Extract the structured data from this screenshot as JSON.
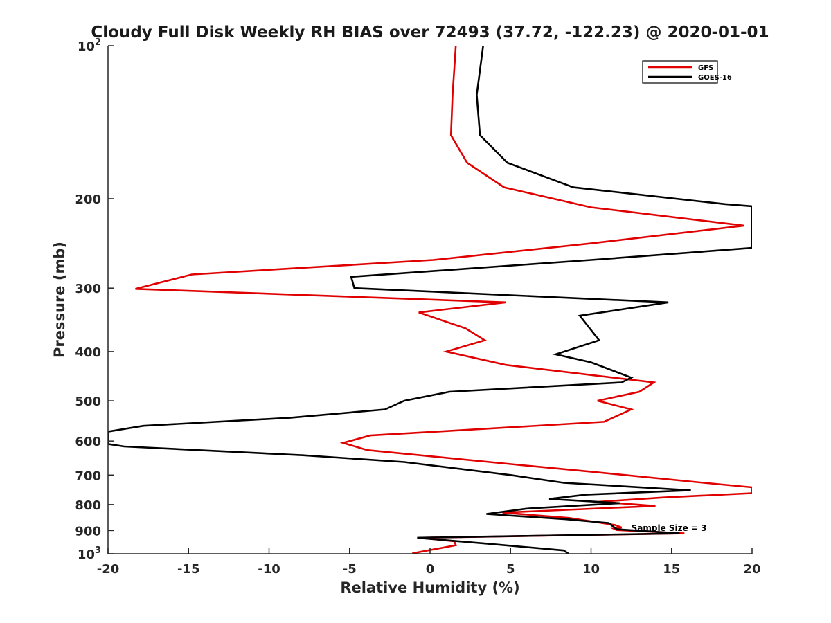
{
  "chart_data": {
    "type": "line",
    "title": "Cloudy Full Disk Weekly RH BIAS over 72493 (37.72, -122.23) @ 2020-01-01",
    "xlabel": "Relative Humidity (%)",
    "ylabel": "Pressure (mb)",
    "xlim": [
      -20,
      20
    ],
    "ylim": [
      100,
      1000
    ],
    "yscale": "log",
    "y_reversed": true,
    "grid": false,
    "legend_position": "top-right",
    "x_ticks": [
      -20,
      -15,
      -10,
      -5,
      0,
      5,
      10,
      15,
      20
    ],
    "x_tick_labels": [
      "-20",
      "-15",
      "-10",
      "-5",
      "0",
      "5",
      "10",
      "15",
      "20"
    ],
    "y_ticks": [
      {
        "value": 100,
        "base": "10",
        "exp": "2"
      },
      {
        "value": 200,
        "label": "200"
      },
      {
        "value": 300,
        "label": "300"
      },
      {
        "value": 400,
        "label": "400"
      },
      {
        "value": 500,
        "label": "500"
      },
      {
        "value": 600,
        "label": "600"
      },
      {
        "value": 700,
        "label": "700"
      },
      {
        "value": 800,
        "label": "800"
      },
      {
        "value": 900,
        "label": "900"
      },
      {
        "value": 1000,
        "base": "10",
        "exp": "3"
      }
    ],
    "series": [
      {
        "name": "GFS",
        "color": "#e00000",
        "points": [
          [
            1.6,
            100
          ],
          [
            1.4,
            125
          ],
          [
            1.3,
            150
          ],
          [
            2.3,
            170
          ],
          [
            4.6,
            190
          ],
          [
            10.0,
            208
          ],
          [
            19.5,
            226
          ],
          [
            10.0,
            245
          ],
          [
            0.2,
            264
          ],
          [
            -14.8,
            282
          ],
          [
            -18.3,
            301
          ],
          [
            4.7,
            320
          ],
          [
            -0.7,
            335
          ],
          [
            2.2,
            360
          ],
          [
            3.4,
            380
          ],
          [
            1.0,
            400
          ],
          [
            4.7,
            425
          ],
          [
            13.9,
            460
          ],
          [
            13.0,
            480
          ],
          [
            10.4,
            500
          ],
          [
            12.5,
            520
          ],
          [
            10.8,
            550
          ],
          [
            0.4,
            575
          ],
          [
            -3.7,
            585
          ],
          [
            -5.4,
            605
          ],
          [
            -3.9,
            625
          ],
          [
            4.8,
            665
          ],
          [
            10.1,
            690
          ],
          [
            17.0,
            725
          ],
          [
            20.0,
            740
          ],
          [
            20.0,
            760
          ],
          [
            14.5,
            775
          ],
          [
            10.5,
            790
          ],
          [
            14.0,
            805
          ],
          [
            4.5,
            830
          ],
          [
            8.6,
            850
          ],
          [
            11.5,
            878
          ],
          [
            11.9,
            888
          ],
          [
            11.4,
            892
          ],
          [
            11.6,
            898
          ],
          [
            15.8,
            912
          ],
          [
            -0.6,
            930
          ],
          [
            1.5,
            945
          ],
          [
            1.6,
            962
          ],
          [
            -1.1,
            998
          ]
        ]
      },
      {
        "name": "GOES-16",
        "color": "#000000",
        "points": [
          [
            3.3,
            100
          ],
          [
            2.9,
            125
          ],
          [
            3.1,
            150
          ],
          [
            4.8,
            170
          ],
          [
            8.9,
            190
          ],
          [
            18.3,
            205
          ],
          [
            20.0,
            207
          ],
          [
            20.0,
            250
          ],
          [
            10.0,
            264
          ],
          [
            -4.9,
            285
          ],
          [
            -4.7,
            300
          ],
          [
            14.8,
            320
          ],
          [
            9.3,
            340
          ],
          [
            10.5,
            380
          ],
          [
            7.8,
            405
          ],
          [
            10.0,
            420
          ],
          [
            12.5,
            450
          ],
          [
            11.9,
            460
          ],
          [
            1.2,
            480
          ],
          [
            -1.6,
            500
          ],
          [
            -2.8,
            520
          ],
          [
            -8.7,
            540
          ],
          [
            -17.8,
            560
          ],
          [
            -20.0,
            575
          ],
          [
            -20.0,
            608
          ],
          [
            -19.0,
            615
          ],
          [
            -7.9,
            640
          ],
          [
            -1.6,
            660
          ],
          [
            5.0,
            700
          ],
          [
            8.3,
            725
          ],
          [
            16.2,
            750
          ],
          [
            9.7,
            765
          ],
          [
            7.4,
            780
          ],
          [
            11.8,
            795
          ],
          [
            6.0,
            815
          ],
          [
            3.5,
            835
          ],
          [
            8.4,
            855
          ],
          [
            11.1,
            870
          ],
          [
            11.4,
            885
          ],
          [
            11.6,
            895
          ],
          [
            15.5,
            912
          ],
          [
            -0.8,
            930
          ],
          [
            3.5,
            955
          ],
          [
            8.3,
            985
          ],
          [
            8.6,
            1000
          ]
        ]
      }
    ],
    "annotations": [
      {
        "text": "Sample Size = 3",
        "x": 12.5,
        "y": 905
      }
    ]
  }
}
